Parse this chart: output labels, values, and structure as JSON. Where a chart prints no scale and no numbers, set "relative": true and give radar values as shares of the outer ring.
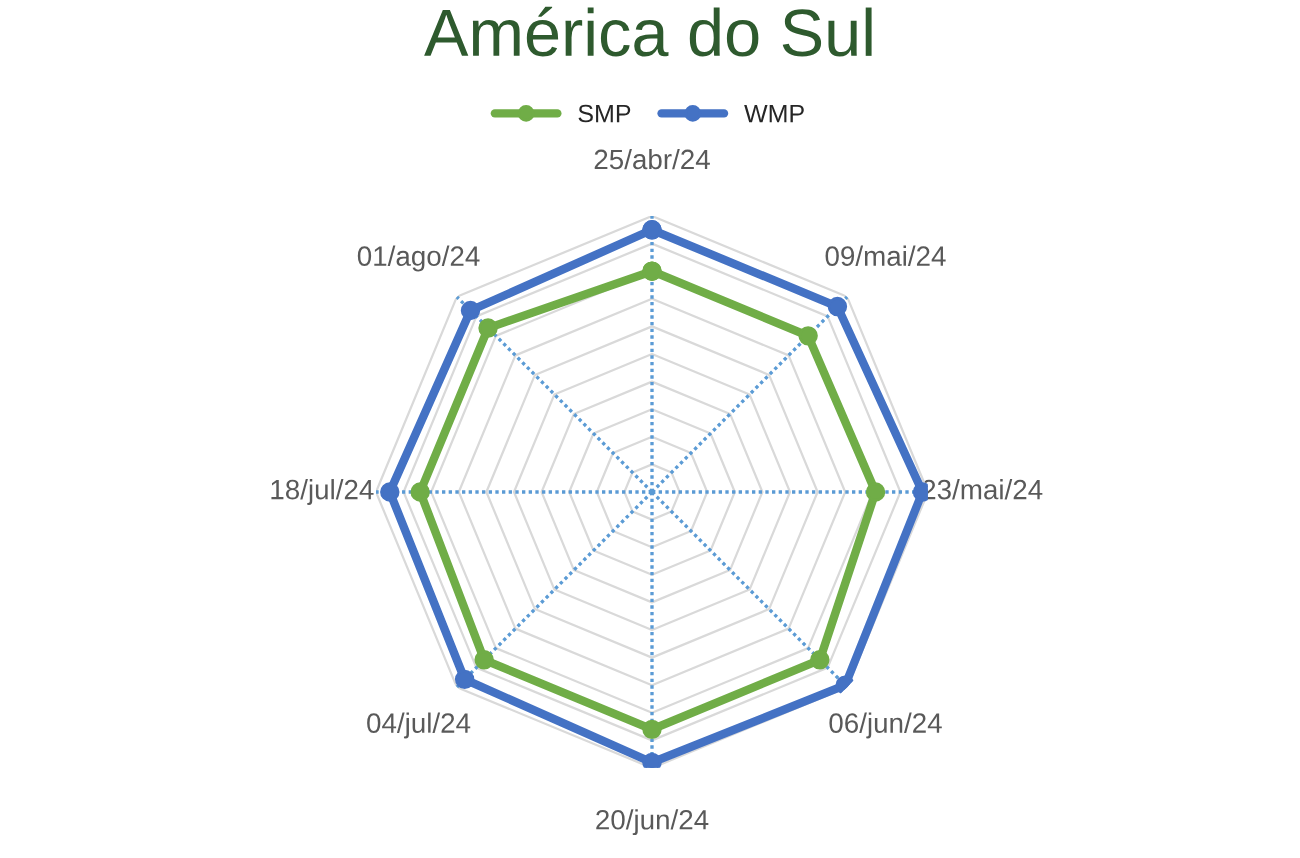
{
  "chart_data": {
    "type": "radar",
    "title": "América do Sul",
    "relative": true,
    "grid": true,
    "legend": "top",
    "marker": "circle",
    "line_style": "solid",
    "categories": [
      "25/abr/24",
      "09/mai/24",
      "23/mai/24",
      "06/jun/24",
      "20/jun/24",
      "04/jul/24",
      "18/jul/24",
      "01/ago/24"
    ],
    "series": [
      {
        "name": "SMP",
        "color": "#70ad47",
        "values": [
          0.8,
          0.8,
          0.81,
          0.86,
          0.86,
          0.86,
          0.84,
          0.84
        ]
      },
      {
        "name": "WMP",
        "color": "#4472c4",
        "values": [
          0.95,
          0.95,
          0.98,
          0.99,
          0.98,
          0.96,
          0.95,
          0.93
        ]
      }
    ]
  }
}
